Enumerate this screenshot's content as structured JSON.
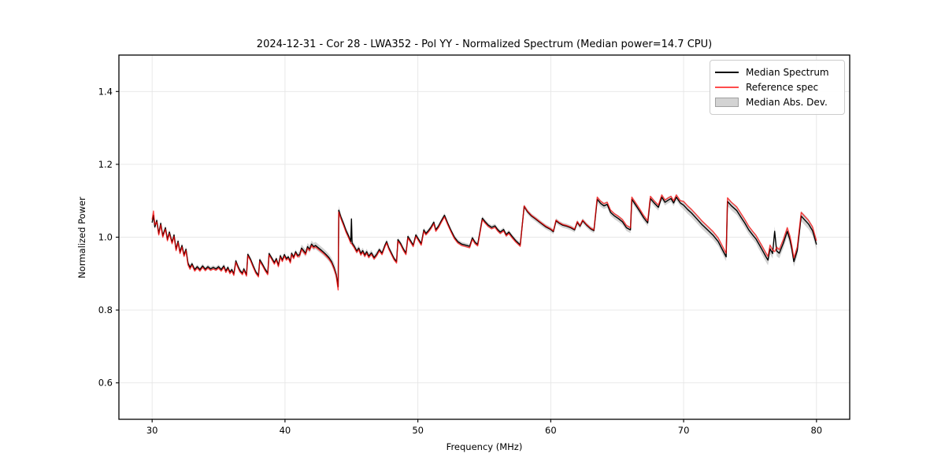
{
  "figure": {
    "title": "2024-12-31 - Cor 28 - LWA352 - Pol YY - Normalized Spectrum (Median power=14.7 CPU)",
    "background_color": "#ffffff"
  },
  "legend": {
    "entries": [
      {
        "label": "Median Spectrum",
        "swatch": "line",
        "color": "#000000"
      },
      {
        "label": "Reference spec",
        "swatch": "line",
        "color": "#ff4c4c"
      },
      {
        "label": "Median Abs. Dev.",
        "swatch": "patch",
        "color": "#d3d3d3",
        "edge": "#a0a0a0"
      }
    ]
  },
  "chart_data": {
    "type": "line",
    "title": "2024-12-31 - Cor 28 - LWA352 - Pol YY - Normalized Spectrum (Median power=14.7 CPU)",
    "xlabel": "Frequency (MHz)",
    "ylabel": "Normalized Power",
    "xlim": [
      27.5,
      82.5
    ],
    "ylim": [
      0.5,
      1.5
    ],
    "xticks": [
      30,
      40,
      50,
      60,
      70,
      80
    ],
    "yticks": [
      0.6,
      0.8,
      1.0,
      1.2,
      1.4
    ],
    "grid": true,
    "grid_color": "#e6e6e6",
    "legend_position": "upper right",
    "median_line_color": "#000000",
    "reference_line_color": "#ff0000",
    "reference_line_alpha": 0.72,
    "band_color": "#969696",
    "band_alpha": 0.42,
    "x": [
      30.0,
      30.1,
      30.2,
      30.35,
      30.5,
      30.65,
      30.8,
      31.0,
      31.15,
      31.3,
      31.5,
      31.65,
      31.8,
      31.95,
      32.1,
      32.25,
      32.4,
      32.55,
      32.7,
      32.85,
      33.0,
      33.2,
      33.4,
      33.6,
      33.8,
      34.0,
      34.2,
      34.4,
      34.6,
      34.8,
      35.0,
      35.2,
      35.4,
      35.55,
      35.7,
      35.85,
      36.0,
      36.15,
      36.3,
      36.45,
      36.6,
      36.8,
      36.9,
      37.1,
      37.2,
      37.4,
      37.6,
      37.8,
      38.0,
      38.1,
      38.3,
      38.5,
      38.7,
      38.8,
      39.0,
      39.2,
      39.35,
      39.5,
      39.65,
      39.8,
      39.95,
      40.1,
      40.25,
      40.4,
      40.5,
      40.65,
      40.8,
      40.95,
      41.1,
      41.25,
      41.4,
      41.55,
      41.7,
      41.85,
      42.0,
      42.15,
      42.3,
      42.5,
      42.7,
      42.9,
      43.1,
      43.3,
      43.5,
      43.7,
      43.85,
      44.0,
      44.05,
      44.2,
      44.4,
      44.6,
      44.8,
      44.95,
      45.0,
      45.05,
      45.2,
      45.4,
      45.55,
      45.7,
      45.85,
      46.0,
      46.15,
      46.3,
      46.5,
      46.7,
      46.9,
      47.1,
      47.3,
      47.5,
      47.65,
      47.8,
      48.0,
      48.2,
      48.4,
      48.5,
      48.7,
      48.9,
      49.1,
      49.25,
      49.45,
      49.65,
      49.85,
      50.05,
      50.25,
      50.45,
      50.6,
      50.8,
      51.0,
      51.2,
      51.35,
      51.55,
      51.75,
      52.0,
      52.25,
      52.5,
      52.75,
      53.0,
      53.3,
      53.6,
      53.9,
      54.1,
      54.3,
      54.5,
      54.85,
      55.05,
      55.3,
      55.55,
      55.8,
      56.0,
      56.2,
      56.45,
      56.65,
      56.85,
      57.05,
      57.35,
      57.7,
      58.0,
      58.25,
      58.55,
      58.85,
      59.2,
      59.6,
      60.0,
      60.2,
      60.4,
      60.65,
      60.9,
      61.2,
      61.5,
      61.8,
      62.0,
      62.2,
      62.4,
      62.7,
      63.0,
      63.25,
      63.5,
      63.75,
      64.0,
      64.25,
      64.5,
      64.8,
      65.1,
      65.4,
      65.7,
      66.0,
      66.1,
      66.4,
      66.7,
      67.0,
      67.3,
      67.5,
      67.8,
      68.1,
      68.35,
      68.6,
      68.85,
      69.05,
      69.25,
      69.45,
      69.75,
      70.0,
      70.3,
      70.6,
      71.0,
      71.4,
      71.8,
      72.2,
      72.6,
      73.0,
      73.2,
      73.3,
      73.6,
      74.0,
      74.3,
      74.6,
      74.9,
      75.2,
      75.45,
      75.6,
      75.9,
      76.2,
      76.35,
      76.5,
      76.7,
      76.85,
      77.0,
      77.2,
      77.5,
      77.8,
      78.0,
      78.15,
      78.3,
      78.55,
      78.85,
      79.1,
      79.4,
      79.7,
      79.9,
      80.0
    ],
    "series": [
      {
        "name": "Median Spectrum",
        "y": [
          1.04,
          1.06,
          1.028,
          1.046,
          1.01,
          1.038,
          1.004,
          1.026,
          0.994,
          1.014,
          0.986,
          1.006,
          0.967,
          0.989,
          0.959,
          0.977,
          0.951,
          0.967,
          0.929,
          0.917,
          0.927,
          0.911,
          0.919,
          0.911,
          0.921,
          0.912,
          0.919,
          0.913,
          0.917,
          0.913,
          0.919,
          0.911,
          0.921,
          0.907,
          0.917,
          0.904,
          0.911,
          0.899,
          0.935,
          0.921,
          0.909,
          0.901,
          0.913,
          0.897,
          0.953,
          0.94,
          0.922,
          0.905,
          0.895,
          0.938,
          0.926,
          0.912,
          0.901,
          0.955,
          0.943,
          0.93,
          0.941,
          0.923,
          0.949,
          0.937,
          0.952,
          0.941,
          0.946,
          0.933,
          0.956,
          0.945,
          0.96,
          0.95,
          0.952,
          0.97,
          0.963,
          0.956,
          0.974,
          0.967,
          0.981,
          0.974,
          0.977,
          0.971,
          0.965,
          0.959,
          0.952,
          0.944,
          0.933,
          0.916,
          0.898,
          0.864,
          1.074,
          1.056,
          1.038,
          1.018,
          1.002,
          0.988,
          1.05,
          0.984,
          0.976,
          0.962,
          0.97,
          0.955,
          0.963,
          0.951,
          0.96,
          0.948,
          0.957,
          0.944,
          0.953,
          0.966,
          0.956,
          0.976,
          0.988,
          0.972,
          0.957,
          0.942,
          0.933,
          0.993,
          0.983,
          0.968,
          0.956,
          1.002,
          0.99,
          0.978,
          1.006,
          0.994,
          0.982,
          1.02,
          1.01,
          1.018,
          1.028,
          1.041,
          1.02,
          1.03,
          1.044,
          1.06,
          1.038,
          1.018,
          1.0,
          0.988,
          0.981,
          0.978,
          0.975,
          0.998,
          0.986,
          0.98,
          1.052,
          1.043,
          1.033,
          1.027,
          1.031,
          1.021,
          1.014,
          1.021,
          1.007,
          1.014,
          1.004,
          0.991,
          0.979,
          1.084,
          1.07,
          1.058,
          1.05,
          1.04,
          1.029,
          1.021,
          1.015,
          1.045,
          1.038,
          1.033,
          1.03,
          1.026,
          1.02,
          1.041,
          1.03,
          1.045,
          1.033,
          1.023,
          1.018,
          1.104,
          1.093,
          1.086,
          1.09,
          1.068,
          1.058,
          1.051,
          1.042,
          1.026,
          1.02,
          1.104,
          1.088,
          1.071,
          1.053,
          1.039,
          1.106,
          1.093,
          1.082,
          1.11,
          1.096,
          1.102,
          1.106,
          1.094,
          1.11,
          1.094,
          1.088,
          1.076,
          1.066,
          1.05,
          1.034,
          1.02,
          1.006,
          0.988,
          0.96,
          0.946,
          1.098,
          1.086,
          1.073,
          1.056,
          1.039,
          1.02,
          1.006,
          0.995,
          0.985,
          0.966,
          0.946,
          0.937,
          0.968,
          0.955,
          1.016,
          0.962,
          0.956,
          0.983,
          1.016,
          0.993,
          0.966,
          0.933,
          0.963,
          1.058,
          1.048,
          1.036,
          1.018,
          0.993,
          0.98
        ]
      },
      {
        "name": "Reference spec",
        "y": [
          1.048,
          1.072,
          1.034,
          1.042,
          1.006,
          1.034,
          1.0,
          1.022,
          0.99,
          1.01,
          0.982,
          1.002,
          0.963,
          0.985,
          0.955,
          0.973,
          0.947,
          0.963,
          0.924,
          0.912,
          0.923,
          0.907,
          0.915,
          0.907,
          0.917,
          0.908,
          0.915,
          0.909,
          0.913,
          0.909,
          0.915,
          0.907,
          0.917,
          0.903,
          0.913,
          0.9,
          0.907,
          0.895,
          0.931,
          0.917,
          0.905,
          0.897,
          0.909,
          0.893,
          0.949,
          0.936,
          0.918,
          0.901,
          0.891,
          0.934,
          0.922,
          0.908,
          0.897,
          0.951,
          0.939,
          0.926,
          0.937,
          0.919,
          0.945,
          0.933,
          0.948,
          0.937,
          0.942,
          0.929,
          0.952,
          0.941,
          0.956,
          0.946,
          0.948,
          0.966,
          0.959,
          0.952,
          0.97,
          0.963,
          0.977,
          0.97,
          0.973,
          0.967,
          0.961,
          0.955,
          0.948,
          0.94,
          0.929,
          0.912,
          0.894,
          0.855,
          1.069,
          1.051,
          1.033,
          1.013,
          0.997,
          0.983,
          0.982,
          0.98,
          0.972,
          0.958,
          0.966,
          0.951,
          0.959,
          0.947,
          0.956,
          0.944,
          0.953,
          0.94,
          0.949,
          0.962,
          0.952,
          0.972,
          0.984,
          0.968,
          0.953,
          0.938,
          0.929,
          0.989,
          0.979,
          0.964,
          0.952,
          0.998,
          0.986,
          0.974,
          1.002,
          0.99,
          0.978,
          1.016,
          1.006,
          1.014,
          1.024,
          1.037,
          1.016,
          1.026,
          1.04,
          1.056,
          1.034,
          1.014,
          0.996,
          0.984,
          0.977,
          0.974,
          0.971,
          0.994,
          0.982,
          0.976,
          1.048,
          1.039,
          1.029,
          1.023,
          1.027,
          1.017,
          1.01,
          1.017,
          1.003,
          1.01,
          1.0,
          0.987,
          0.975,
          1.086,
          1.072,
          1.06,
          1.052,
          1.042,
          1.031,
          1.023,
          1.017,
          1.047,
          1.04,
          1.035,
          1.032,
          1.028,
          1.022,
          1.043,
          1.032,
          1.047,
          1.035,
          1.025,
          1.02,
          1.11,
          1.099,
          1.092,
          1.096,
          1.074,
          1.064,
          1.057,
          1.048,
          1.032,
          1.026,
          1.11,
          1.094,
          1.077,
          1.059,
          1.045,
          1.112,
          1.099,
          1.088,
          1.116,
          1.102,
          1.108,
          1.112,
          1.1,
          1.116,
          1.1,
          1.098,
          1.086,
          1.076,
          1.06,
          1.044,
          1.03,
          1.016,
          0.998,
          0.97,
          0.956,
          1.108,
          1.096,
          1.083,
          1.066,
          1.049,
          1.03,
          1.016,
          1.005,
          0.995,
          0.976,
          0.956,
          0.947,
          0.978,
          0.965,
          0.96,
          0.972,
          0.966,
          0.993,
          1.026,
          1.003,
          0.976,
          0.943,
          0.973,
          1.068,
          1.058,
          1.046,
          1.028,
          1.003,
          0.99
        ]
      },
      {
        "name": "Median Abs. Dev.",
        "band_around": "Median Spectrum",
        "halfwidth": [
          0.007,
          0.007,
          0.007,
          0.007,
          0.007,
          0.007,
          0.007,
          0.007,
          0.007,
          0.007,
          0.007,
          0.007,
          0.007,
          0.007,
          0.007,
          0.007,
          0.007,
          0.007,
          0.007,
          0.007,
          0.006,
          0.006,
          0.006,
          0.006,
          0.006,
          0.006,
          0.006,
          0.006,
          0.006,
          0.006,
          0.006,
          0.006,
          0.006,
          0.006,
          0.006,
          0.006,
          0.006,
          0.006,
          0.006,
          0.006,
          0.006,
          0.006,
          0.006,
          0.006,
          0.006,
          0.006,
          0.006,
          0.006,
          0.006,
          0.006,
          0.006,
          0.006,
          0.006,
          0.006,
          0.006,
          0.006,
          0.006,
          0.006,
          0.006,
          0.006,
          0.006,
          0.006,
          0.006,
          0.006,
          0.006,
          0.006,
          0.006,
          0.006,
          0.01,
          0.01,
          0.01,
          0.01,
          0.01,
          0.01,
          0.01,
          0.01,
          0.01,
          0.01,
          0.01,
          0.01,
          0.01,
          0.01,
          0.01,
          0.013,
          0.013,
          0.013,
          0.012,
          0.008,
          0.008,
          0.008,
          0.008,
          0.008,
          0.008,
          0.008,
          0.008,
          0.008,
          0.008,
          0.008,
          0.008,
          0.008,
          0.008,
          0.008,
          0.008,
          0.008,
          0.008,
          0.006,
          0.006,
          0.006,
          0.006,
          0.006,
          0.006,
          0.006,
          0.006,
          0.006,
          0.006,
          0.006,
          0.006,
          0.006,
          0.006,
          0.006,
          0.006,
          0.006,
          0.006,
          0.006,
          0.006,
          0.006,
          0.006,
          0.006,
          0.006,
          0.006,
          0.006,
          0.006,
          0.006,
          0.006,
          0.006,
          0.006,
          0.006,
          0.006,
          0.006,
          0.006,
          0.006,
          0.006,
          0.006,
          0.006,
          0.006,
          0.006,
          0.006,
          0.006,
          0.006,
          0.006,
          0.006,
          0.006,
          0.006,
          0.006,
          0.006,
          0.007,
          0.007,
          0.007,
          0.007,
          0.007,
          0.007,
          0.007,
          0.007,
          0.007,
          0.007,
          0.007,
          0.007,
          0.007,
          0.007,
          0.007,
          0.007,
          0.007,
          0.007,
          0.007,
          0.007,
          0.009,
          0.009,
          0.009,
          0.009,
          0.009,
          0.009,
          0.009,
          0.009,
          0.009,
          0.009,
          0.009,
          0.009,
          0.009,
          0.009,
          0.009,
          0.009,
          0.009,
          0.009,
          0.009,
          0.009,
          0.009,
          0.009,
          0.009,
          0.009,
          0.009,
          0.012,
          0.012,
          0.012,
          0.012,
          0.012,
          0.012,
          0.012,
          0.012,
          0.012,
          0.012,
          0.012,
          0.012,
          0.012,
          0.012,
          0.012,
          0.012,
          0.012,
          0.012,
          0.014,
          0.014,
          0.014,
          0.014,
          0.014,
          0.014,
          0.014,
          0.014,
          0.014,
          0.014,
          0.014,
          0.014,
          0.014,
          0.014,
          0.014,
          0.014,
          0.014,
          0.014,
          0.014,
          0.014,
          0.014
        ]
      }
    ]
  }
}
